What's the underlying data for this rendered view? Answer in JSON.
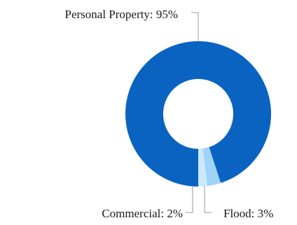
{
  "chart_data": {
    "type": "pie",
    "variant": "donut",
    "title": "",
    "categories": [
      "Personal Property",
      "Flood",
      "Commercial"
    ],
    "values": [
      95,
      3,
      2
    ],
    "unit": "%",
    "colors": [
      "#0a63c0",
      "#9fd3f8",
      "#cbe9fc"
    ],
    "labels": [
      "Personal Property: 95%",
      "Flood: 3%",
      "Commercial: 2%"
    ],
    "legend": "none"
  }
}
